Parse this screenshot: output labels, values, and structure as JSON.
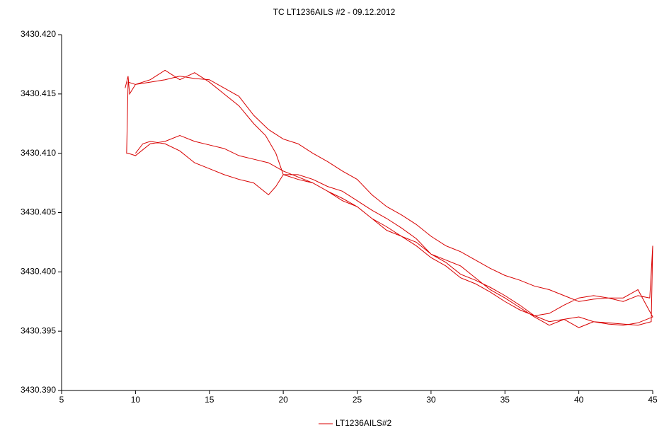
{
  "chart_data": {
    "type": "line",
    "title": "TC LT1236AILS #2 - 09.12.2012",
    "x": [
      9.3,
      9.5,
      9.6,
      10,
      11,
      12,
      13,
      14,
      15,
      16,
      17,
      18,
      18.8,
      19.5,
      20,
      21,
      22,
      23,
      24,
      25,
      26,
      27,
      28,
      29,
      30,
      31,
      32,
      33,
      34,
      35,
      36,
      37,
      38,
      39,
      40,
      41,
      42,
      43,
      44,
      44.9,
      45,
      44.8,
      44,
      43,
      42,
      41,
      40,
      39,
      38,
      37,
      36,
      35,
      34,
      33,
      32,
      31,
      30,
      29,
      28,
      27,
      26,
      25,
      24,
      23,
      22,
      21,
      20,
      19,
      18,
      17,
      16,
      15,
      14,
      13,
      12,
      11,
      10,
      9.5,
      9.4,
      9.5,
      10,
      11,
      12,
      13,
      14,
      15,
      16,
      17,
      18,
      19,
      20,
      21,
      22,
      23,
      24,
      25,
      26,
      27,
      28,
      29,
      30,
      31,
      32,
      33,
      34,
      35,
      36,
      37,
      38,
      39,
      40,
      41,
      42,
      43,
      44,
      45,
      44,
      43,
      42,
      41,
      40,
      39,
      38,
      37,
      36,
      35,
      34,
      33,
      32,
      31,
      30,
      29,
      28,
      27,
      26,
      25,
      24,
      23,
      22,
      21,
      20,
      19.5,
      19,
      18,
      17,
      16,
      15,
      14,
      13,
      12,
      11,
      10.5,
      10
    ],
    "series": [
      {
        "name": "LT1236AILS#2",
        "color": "#d80000",
        "values": [
          3430.4155,
          3430.4165,
          3430.415,
          3430.4158,
          3430.4162,
          3430.417,
          3430.4162,
          3430.4168,
          3430.416,
          3430.415,
          3430.414,
          3430.4125,
          3430.4115,
          3430.41,
          3430.4082,
          3430.4078,
          3430.4075,
          3430.4068,
          3430.406,
          3430.4055,
          3430.4045,
          3430.4035,
          3430.403,
          3430.4025,
          3430.4015,
          3430.401,
          3430.4005,
          3430.3995,
          3430.3985,
          3430.3978,
          3430.397,
          3430.3962,
          3430.3955,
          3430.396,
          3430.3953,
          3430.3958,
          3430.3957,
          3430.3956,
          3430.3955,
          3430.3958,
          3430.4022,
          3430.3978,
          3430.398,
          3430.3975,
          3430.3978,
          3430.3977,
          3430.3975,
          3430.398,
          3430.3985,
          3430.3988,
          3430.3993,
          3430.3997,
          3430.4003,
          3430.401,
          3430.4017,
          3430.4022,
          3430.403,
          3430.404,
          3430.4048,
          3430.4055,
          3430.4065,
          3430.4078,
          3430.4085,
          3430.4093,
          3430.41,
          3430.4108,
          3430.4112,
          3430.412,
          3430.4132,
          3430.4148,
          3430.4155,
          3430.4162,
          3430.4163,
          3430.4165,
          3430.4162,
          3430.416,
          3430.4158,
          3430.416,
          3430.41,
          3430.41,
          3430.4098,
          3430.4108,
          3430.411,
          3430.4115,
          3430.411,
          3430.4107,
          3430.4104,
          3430.4098,
          3430.4095,
          3430.4092,
          3430.4085,
          3430.408,
          3430.4075,
          3430.4068,
          3430.4062,
          3430.4055,
          3430.4045,
          3430.4038,
          3430.403,
          3430.4022,
          3430.4012,
          3430.4005,
          3430.3995,
          3430.399,
          3430.3983,
          3430.3975,
          3430.3968,
          3430.3963,
          3430.3958,
          3430.396,
          3430.3962,
          3430.3958,
          3430.3956,
          3430.3955,
          3430.3957,
          3430.3962,
          3430.3985,
          3430.3978,
          3430.3978,
          3430.398,
          3430.3978,
          3430.3972,
          3430.3965,
          3430.3963,
          3430.3972,
          3430.398,
          3430.3987,
          3430.3993,
          3430.3998,
          3430.4008,
          3430.4015,
          3430.4028,
          3430.4037,
          3430.4045,
          3430.4052,
          3430.406,
          3430.4068,
          3430.4072,
          3430.4078,
          3430.4082,
          3430.4082,
          3430.4072,
          3430.4065,
          3430.4075,
          3430.4078,
          3430.4082,
          3430.4087,
          3430.4092,
          3430.4102,
          3430.4108,
          3430.411,
          3430.4108,
          3430.41
        ]
      }
    ],
    "xlim": [
      5,
      45
    ],
    "xticks": [
      5,
      10,
      15,
      20,
      25,
      30,
      35,
      40,
      45
    ],
    "ylim": [
      3430.39,
      3430.42
    ],
    "yticks": [
      {
        "value": 3430.39,
        "label": "3430.390"
      },
      3430.395,
      {
        "value": 3430.4,
        "label": "3430.400"
      },
      3430.405,
      {
        "value": 3430.41,
        "label": "3430.410"
      },
      3430.415,
      {
        "value": 3430.42,
        "label": "3430.420"
      }
    ],
    "grid": false,
    "legend": "bottom"
  }
}
